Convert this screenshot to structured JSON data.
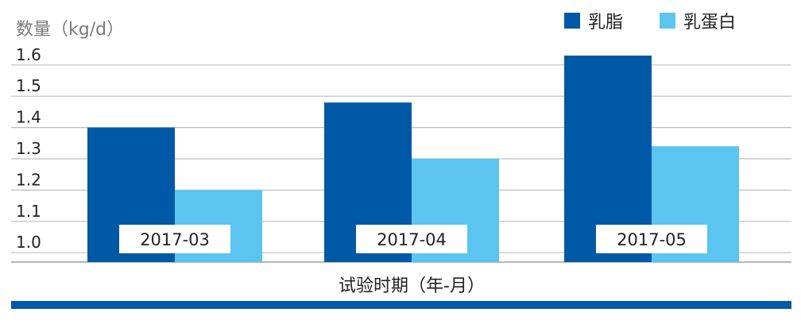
{
  "chart_data": {
    "type": "bar",
    "ylabel": "数量（kg/d）",
    "xlabel": "试验时期（年-月）",
    "categories": [
      "2017-03",
      "2017-04",
      "2017-05"
    ],
    "series": [
      {
        "name": "乳脂",
        "values": [
          1.4,
          1.48,
          1.63
        ],
        "color": "#0059a7"
      },
      {
        "name": "乳蛋白",
        "values": [
          1.2,
          1.3,
          1.34
        ],
        "color": "#5bc4f0"
      }
    ],
    "ylim": [
      0.97,
      1.63
    ],
    "yticks": [
      "1.6",
      "1.5",
      "1.4",
      "1.3",
      "1.2",
      "1.1",
      "1.0"
    ],
    "grid": true,
    "legend_position": "top-right",
    "footer_bar_color": "#0059a7"
  }
}
